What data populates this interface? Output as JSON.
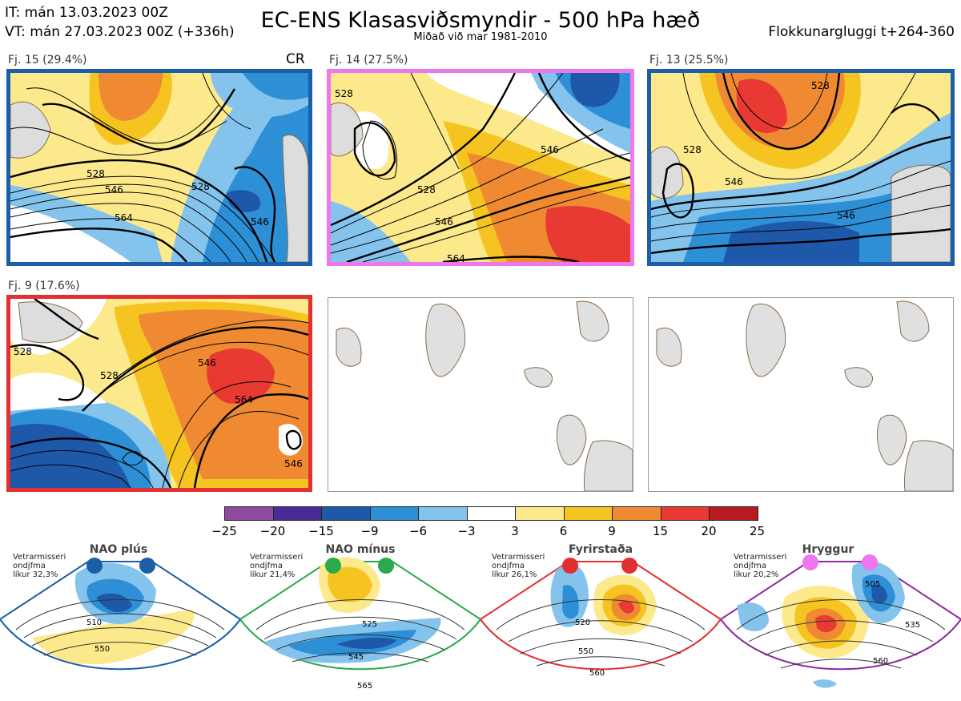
{
  "header": {
    "it": "IT: mán 13.03.2023 00Z",
    "vt": "VT: mán 27.03.2023 00Z  (+336h)",
    "title": "EC-ENS Klasasviðsmyndir - 500 hPa hæð",
    "subtitle": "Miðað við mar 1981-2010",
    "window": "Flokkunargluggi t+264-360"
  },
  "panels": [
    {
      "label": "Fj. 15 (29.4%)",
      "tag": "CR",
      "border": "#1b5fa8",
      "contours": [
        "528",
        "546",
        "564",
        "528",
        "546"
      ]
    },
    {
      "label": "Fj. 14 (27.5%)",
      "border": "#ee77ee",
      "contours": [
        "528",
        "528",
        "546",
        "564",
        "546"
      ]
    },
    {
      "label": "Fj. 13 (25.5%)",
      "border": "#1b5fa8",
      "contours": [
        "528",
        "546",
        "546",
        "528"
      ]
    },
    {
      "label": "Fj. 9 (17.6%)",
      "border": "#e03030",
      "contours": [
        "528",
        "528",
        "546",
        "564",
        "546"
      ]
    }
  ],
  "colorbar": {
    "ticks": [
      "−25",
      "−20",
      "−15",
      "−9",
      "−6",
      "−3",
      "3",
      "6",
      "9",
      "15",
      "20",
      "25"
    ],
    "colors": [
      "#8e4a9e",
      "#4a2a96",
      "#1e58a8",
      "#2d8fd6",
      "#84c3ec",
      "#ffffff",
      "#fbe98c",
      "#f5c420",
      "#ef8a32",
      "#e83a32",
      "#b81a22"
    ]
  },
  "regimes": [
    {
      "name": "NAO plús",
      "note": [
        "Vetrarmisseri",
        "ondjfma",
        "líkur 32,3%"
      ],
      "color": "#1b5fa8",
      "contours": [
        "510",
        "550"
      ]
    },
    {
      "name": "NAO mínus",
      "note": [
        "Vetrarmisseri",
        "ondjfma",
        "líkur 21,4%"
      ],
      "color": "#2aaa4a",
      "contours": [
        "525",
        "545",
        "565"
      ]
    },
    {
      "name": "Fyrirstaða",
      "note": [
        "Vetrarmisseri",
        "ondjfma",
        "líkur 26,1%"
      ],
      "color": "#e03030",
      "contours": [
        "520",
        "550",
        "560"
      ]
    },
    {
      "name": "Hryggur",
      "note": [
        "Vetrarmisseri",
        "ondjfma",
        "líkur 20,2%"
      ],
      "color": "#ee77ee",
      "contours": [
        "505",
        "535",
        "560"
      ]
    }
  ]
}
